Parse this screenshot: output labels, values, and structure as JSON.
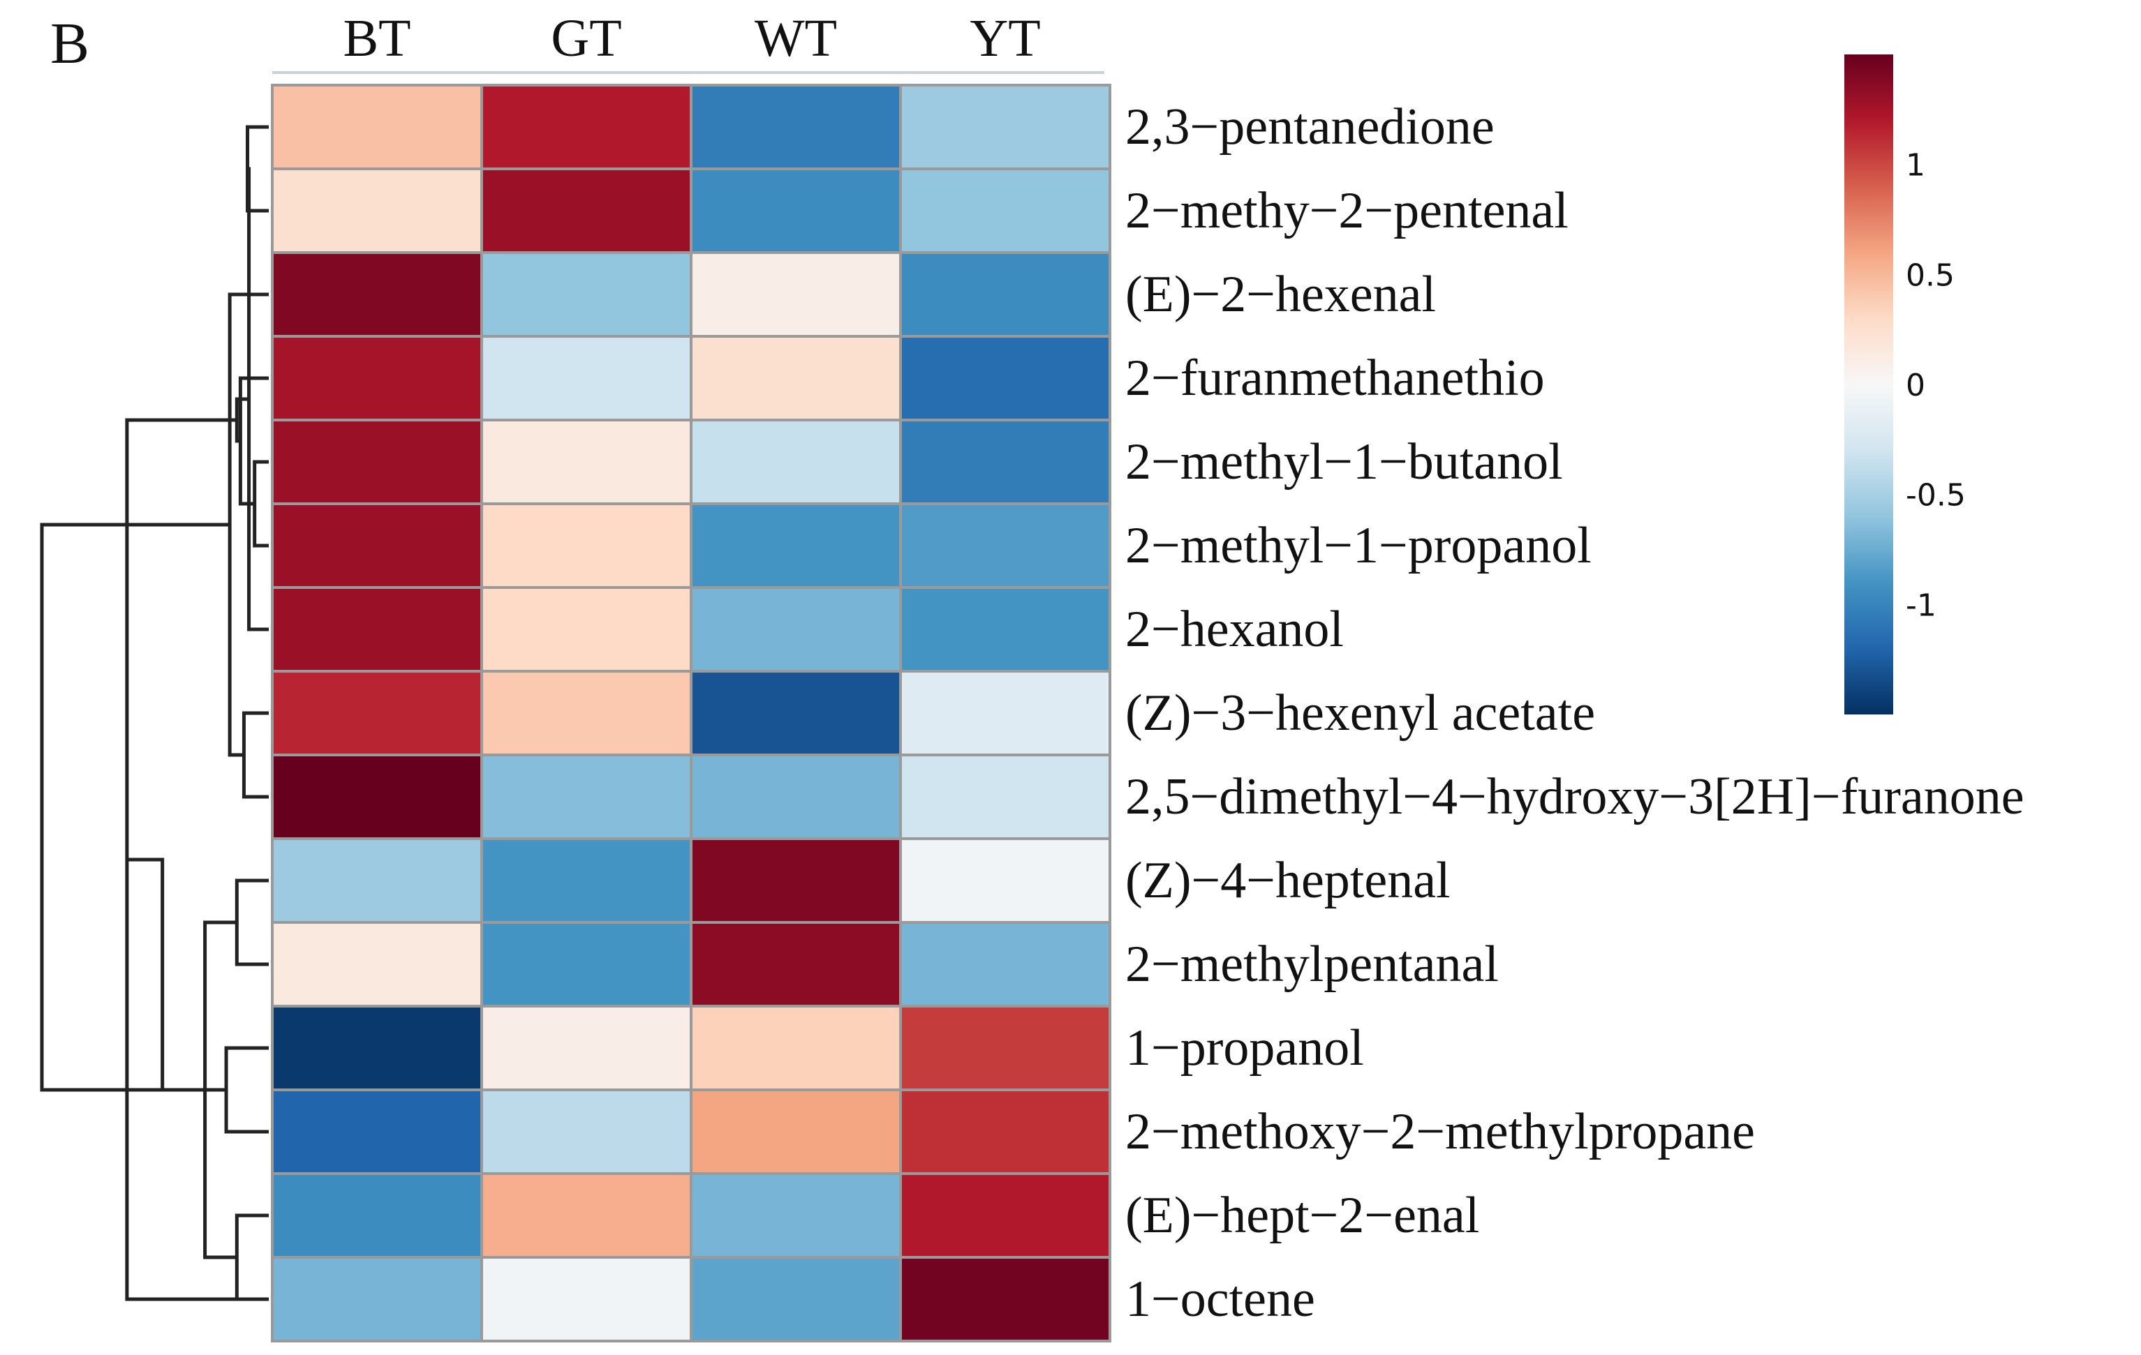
{
  "panel_label": "B",
  "chart_data": {
    "type": "heatmap",
    "columns": [
      "BT",
      "GT",
      "WT",
      "YT"
    ],
    "rows": [
      "2,3−pentanedione",
      "2−methy−2−pentenal",
      "(E)−2−hexenal",
      "2−furanmethanethio",
      "2−methyl−1−butanol",
      "2−methyl−1−propanol",
      "2−hexanol",
      "(Z)−3−hexenyl acetate",
      "2,5−dimethyl−4−hydroxy−3[2H]−furanone",
      "(Z)−4−heptenal",
      "2−methylpentanal",
      "1−propanol",
      "2−methoxy−2−methylpropane",
      "(E)−hept−2−enal",
      "1−octene"
    ],
    "values": [
      [
        0.45,
        1.2,
        -1.05,
        -0.55
      ],
      [
        0.25,
        1.3,
        -0.95,
        -0.6
      ],
      [
        1.4,
        -0.6,
        0.1,
        -0.95
      ],
      [
        1.25,
        -0.3,
        0.25,
        -1.15
      ],
      [
        1.3,
        0.15,
        -0.35,
        -1.05
      ],
      [
        1.3,
        0.3,
        -0.9,
        -0.85
      ],
      [
        1.3,
        0.3,
        -0.7,
        -0.9
      ],
      [
        1.15,
        0.4,
        -1.3,
        -0.2
      ],
      [
        1.5,
        -0.65,
        -0.7,
        -0.3
      ],
      [
        -0.55,
        -0.9,
        1.4,
        -0.05
      ],
      [
        0.15,
        -0.9,
        1.35,
        -0.7
      ],
      [
        -1.45,
        0.1,
        0.35,
        1.05
      ],
      [
        -1.2,
        -0.4,
        0.6,
        1.1
      ],
      [
        -0.95,
        0.55,
        -0.7,
        1.2
      ],
      [
        -0.7,
        -0.05,
        -0.8,
        1.45
      ]
    ],
    "color_scale": {
      "min": -1.5,
      "max": 1.5,
      "colors": [
        "#053061",
        "#2166ac",
        "#4393c3",
        "#92c5de",
        "#d1e5f0",
        "#f7f7f7",
        "#fddbc7",
        "#f4a582",
        "#d6604d",
        "#b2182b",
        "#67001f"
      ]
    },
    "legend_ticks": [
      {
        "value": 1,
        "label": "1"
      },
      {
        "value": 0.5,
        "label": "0.5"
      },
      {
        "value": 0,
        "label": "0"
      },
      {
        "value": -0.5,
        "label": "-0.5"
      },
      {
        "value": -1,
        "label": "-1"
      }
    ],
    "row_dendrogram": {
      "merges": [
        [
          0,
          1,
          0.3
        ],
        [
          4,
          5,
          0.2
        ],
        [
          15,
          6,
          0.28
        ],
        [
          3,
          16,
          0.4
        ],
        [
          7,
          8,
          0.35
        ],
        [
          17,
          18,
          0.45
        ],
        [
          2,
          19,
          0.55
        ],
        [
          14,
          20,
          2.0
        ],
        [
          9,
          10,
          0.45
        ],
        [
          13,
          14,
          0.45
        ],
        [
          11,
          12,
          0.6
        ],
        [
          24,
          23,
          0.9
        ],
        [
          22,
          25,
          1.5
        ],
        [
          21,
          26,
          3.2
        ]
      ]
    }
  }
}
